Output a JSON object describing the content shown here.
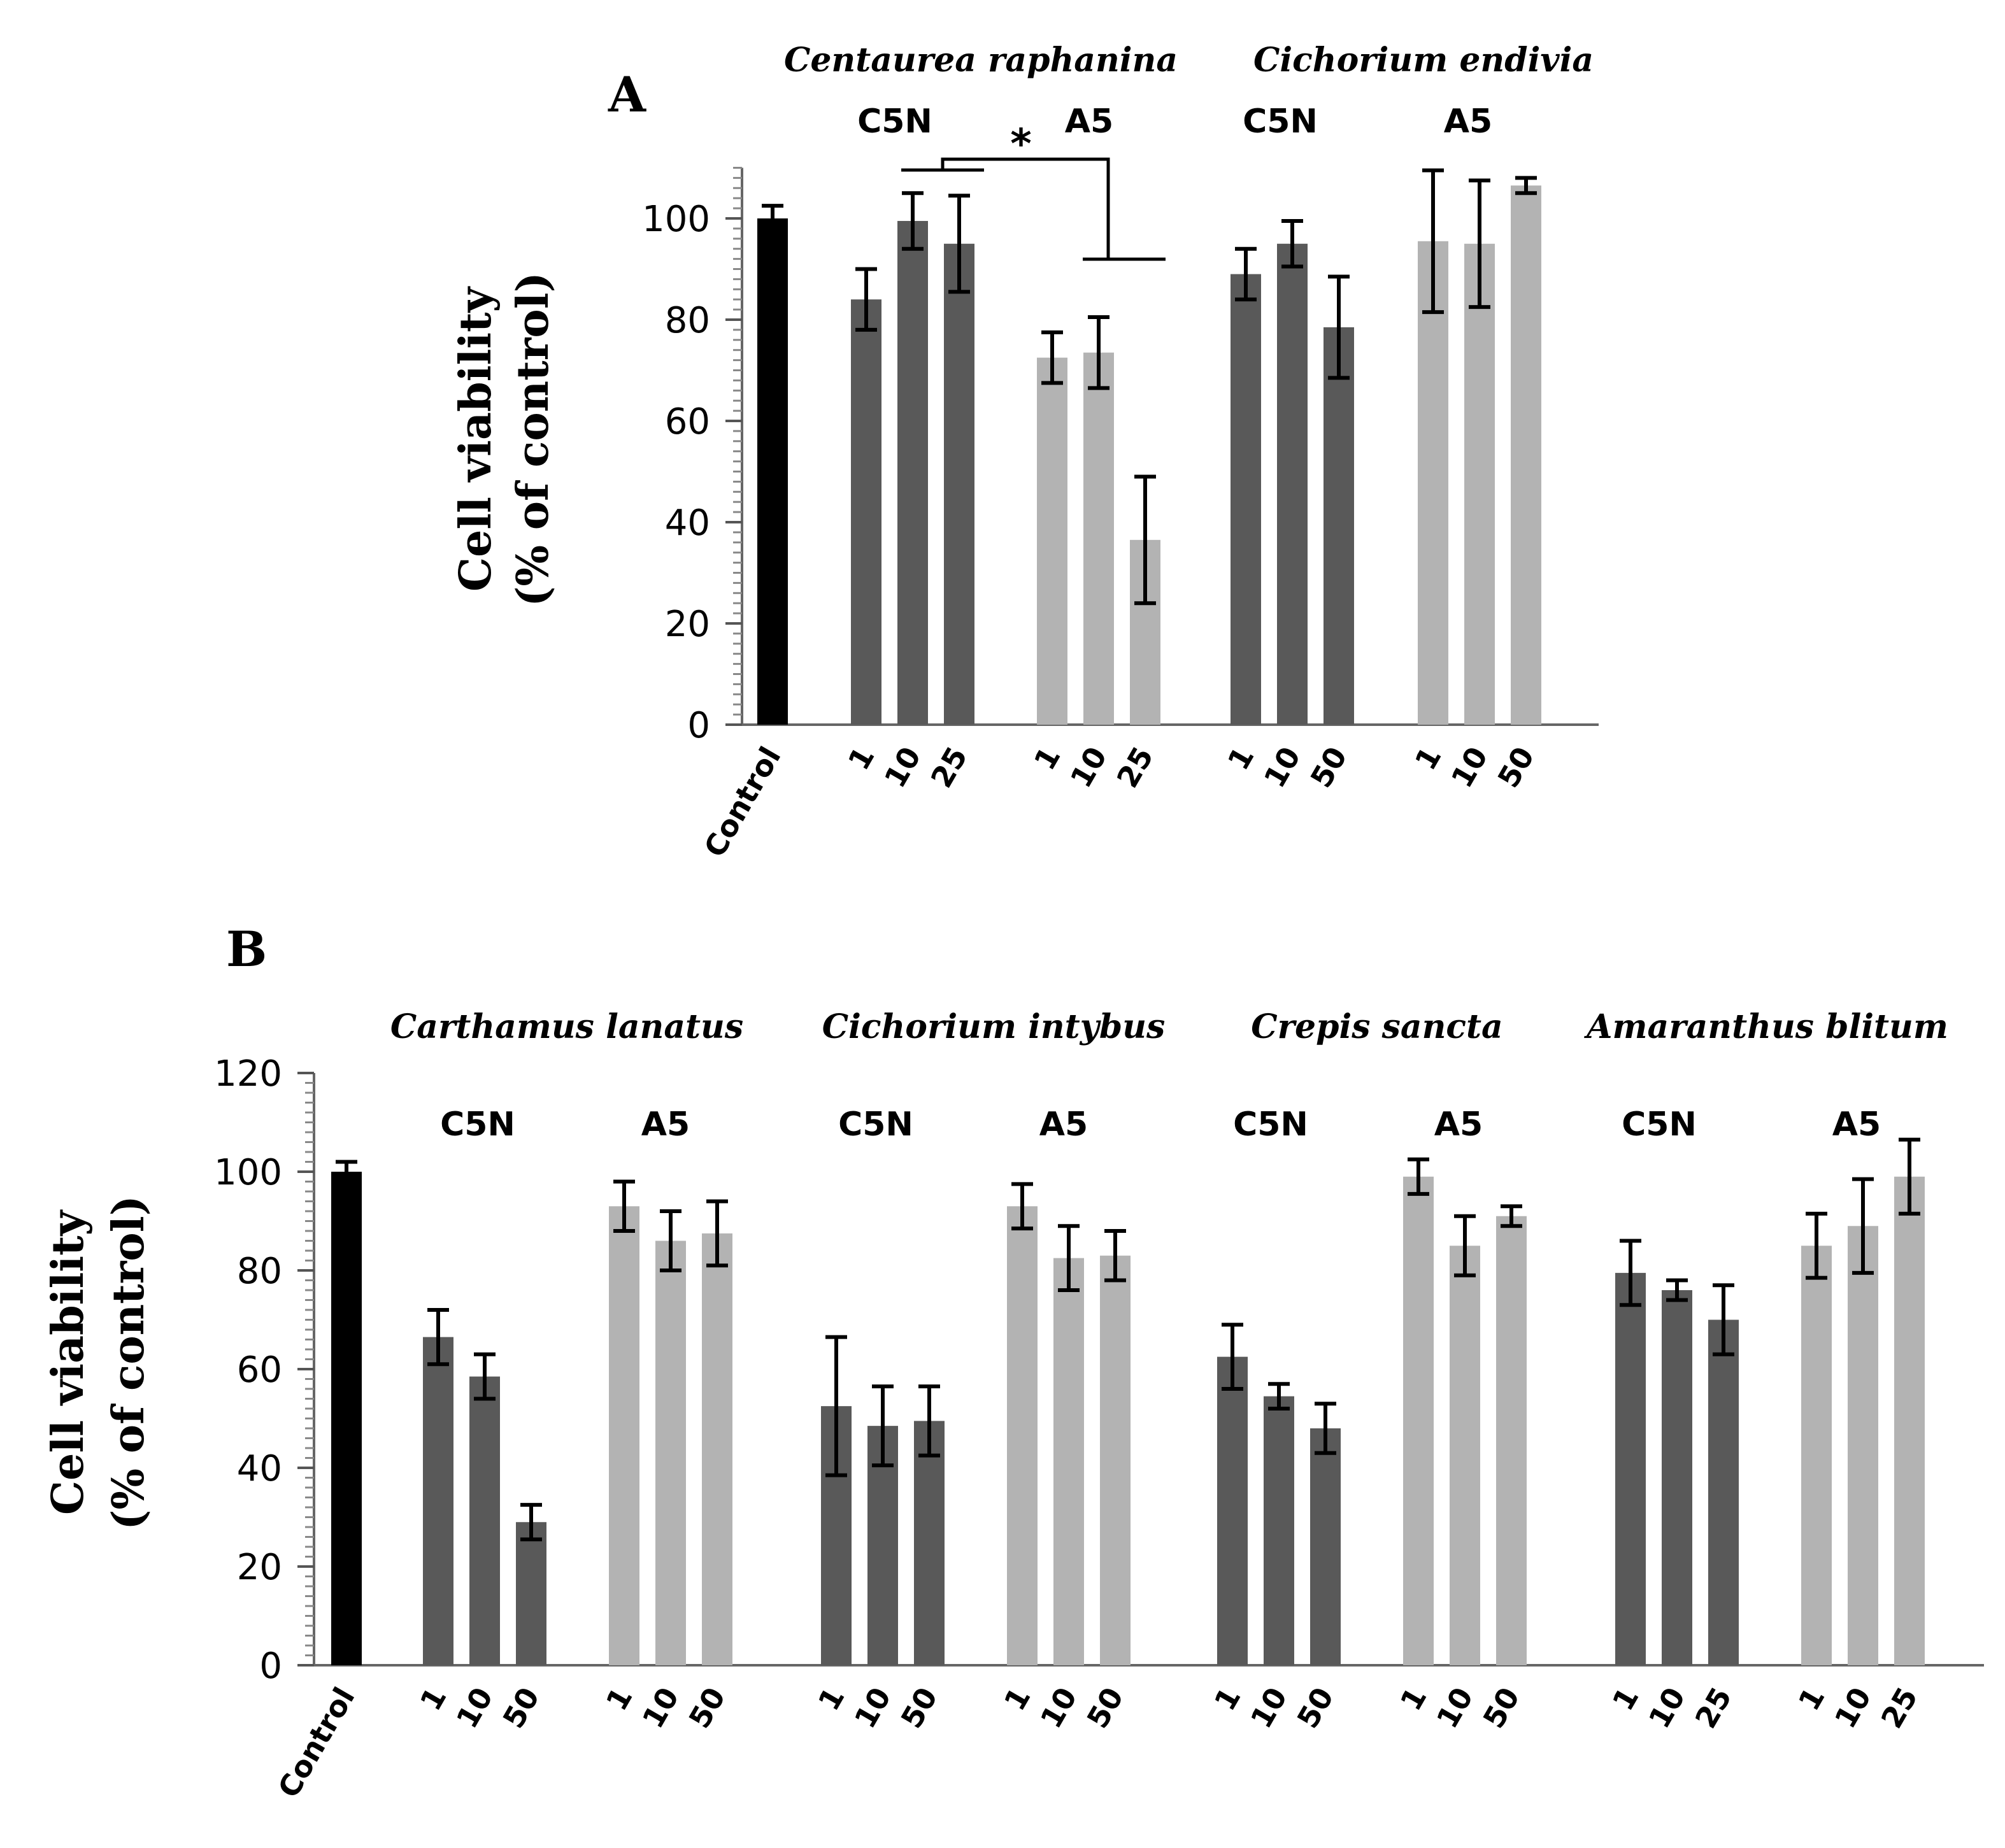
{
  "chart_data": [
    {
      "panel": "A",
      "type": "bar",
      "ylabel_line1": "Cell viability",
      "ylabel_line2": "(% of control)",
      "ylim": [
        0,
        110
      ],
      "yticks": [
        0,
        20,
        40,
        60,
        80,
        100
      ],
      "colors": {
        "control": "#000000",
        "C5N": "#595959",
        "A5": "#b3b3b3",
        "error": "#000000"
      },
      "species": [
        "Centaurea raphanina",
        "Cichorium endivia"
      ],
      "group_labels": [
        "C5N",
        "A5",
        "C5N",
        "A5"
      ],
      "significance": "*",
      "bars": [
        {
          "label": "Control",
          "group": "control",
          "value": 100,
          "err": 2.5
        },
        {
          "label": "1",
          "group": "C5N",
          "value": 84,
          "err": 6
        },
        {
          "label": "10",
          "group": "C5N",
          "value": 99.5,
          "err": 5.5
        },
        {
          "label": "25",
          "group": "C5N",
          "value": 95,
          "err": 9.5
        },
        {
          "label": "1",
          "group": "A5",
          "value": 72.5,
          "err": 5
        },
        {
          "label": "10",
          "group": "A5",
          "value": 73.5,
          "err": 7
        },
        {
          "label": "25",
          "group": "A5",
          "value": 36.5,
          "err": 12.5
        },
        {
          "label": "1",
          "group": "C5N",
          "value": 89,
          "err": 5
        },
        {
          "label": "10",
          "group": "C5N",
          "value": 95,
          "err": 4.5
        },
        {
          "label": "50",
          "group": "C5N",
          "value": 78.5,
          "err": 10
        },
        {
          "label": "1",
          "group": "A5",
          "value": 95.5,
          "err": 14
        },
        {
          "label": "10",
          "group": "A5",
          "value": 95,
          "err": 12.5
        },
        {
          "label": "50",
          "group": "A5",
          "value": 106.5,
          "err": 1.5
        }
      ]
    },
    {
      "panel": "B",
      "type": "bar",
      "ylabel_line1": "Cell viability",
      "ylabel_line2": "(% of control)",
      "ylim": [
        0,
        120
      ],
      "yticks": [
        0,
        20,
        40,
        60,
        80,
        100,
        120
      ],
      "colors": {
        "control": "#000000",
        "C5N": "#595959",
        "A5": "#b3b3b3",
        "error": "#000000"
      },
      "species": [
        "Carthamus lanatus",
        "Cichorium intybus",
        "Crepis sancta",
        "Amaranthus blitum"
      ],
      "group_labels": [
        "C5N",
        "A5",
        "C5N",
        "A5",
        "C5N",
        "A5",
        "C5N",
        "A5"
      ],
      "bars": [
        {
          "label": "Control",
          "group": "control",
          "value": 100,
          "err": 2
        },
        {
          "label": "1",
          "group": "C5N",
          "value": 66.5,
          "err": 5.5
        },
        {
          "label": "10",
          "group": "C5N",
          "value": 58.5,
          "err": 4.5
        },
        {
          "label": "50",
          "group": "C5N",
          "value": 29,
          "err": 3.5
        },
        {
          "label": "1",
          "group": "A5",
          "value": 93,
          "err": 5
        },
        {
          "label": "10",
          "group": "A5",
          "value": 86,
          "err": 6
        },
        {
          "label": "50",
          "group": "A5",
          "value": 87.5,
          "err": 6.5
        },
        {
          "label": "1",
          "group": "C5N",
          "value": 52.5,
          "err": 14
        },
        {
          "label": "10",
          "group": "C5N",
          "value": 48.5,
          "err": 8
        },
        {
          "label": "50",
          "group": "C5N",
          "value": 49.5,
          "err": 7
        },
        {
          "label": "1",
          "group": "A5",
          "value": 93,
          "err": 4.5
        },
        {
          "label": "10",
          "group": "A5",
          "value": 82.5,
          "err": 6.5
        },
        {
          "label": "50",
          "group": "A5",
          "value": 83,
          "err": 5
        },
        {
          "label": "1",
          "group": "C5N",
          "value": 62.5,
          "err": 6.5
        },
        {
          "label": "10",
          "group": "C5N",
          "value": 54.5,
          "err": 2.5
        },
        {
          "label": "50",
          "group": "C5N",
          "value": 48,
          "err": 5
        },
        {
          "label": "1",
          "group": "A5",
          "value": 99,
          "err": 3.5
        },
        {
          "label": "10",
          "group": "A5",
          "value": 85,
          "err": 6
        },
        {
          "label": "50",
          "group": "A5",
          "value": 91,
          "err": 2
        },
        {
          "label": "1",
          "group": "C5N",
          "value": 79.5,
          "err": 6.5
        },
        {
          "label": "10",
          "group": "C5N",
          "value": 76,
          "err": 2
        },
        {
          "label": "25",
          "group": "C5N",
          "value": 70,
          "err": 7
        },
        {
          "label": "1",
          "group": "A5",
          "value": 85,
          "err": 6.5
        },
        {
          "label": "10",
          "group": "A5",
          "value": 89,
          "err": 9.5
        },
        {
          "label": "25",
          "group": "A5",
          "value": 99,
          "err": 7.5
        }
      ]
    }
  ]
}
